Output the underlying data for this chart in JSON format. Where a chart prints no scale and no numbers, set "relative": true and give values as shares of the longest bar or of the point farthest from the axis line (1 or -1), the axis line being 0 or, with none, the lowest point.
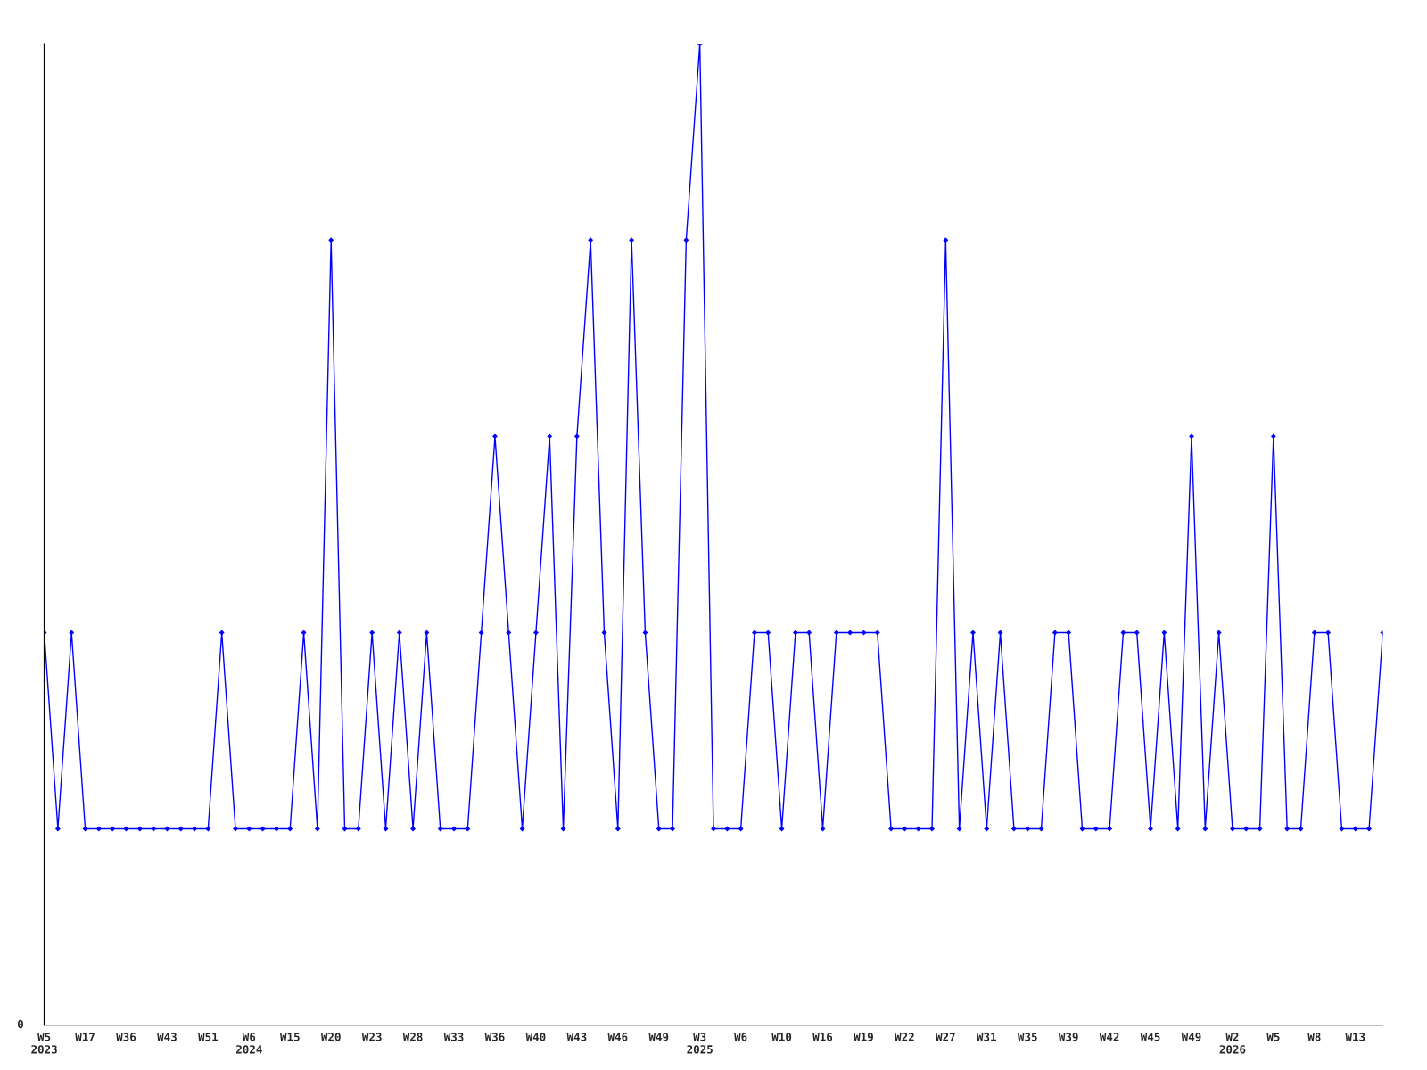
{
  "chart_data": {
    "type": "line",
    "relative": true,
    "categories": [
      "W5\n2023",
      null,
      null,
      "W17",
      null,
      null,
      "W36",
      null,
      null,
      "W43",
      null,
      null,
      "W51",
      null,
      null,
      "W6\n2024",
      null,
      null,
      "W15",
      null,
      null,
      "W20",
      null,
      null,
      "W23",
      null,
      null,
      "W28",
      null,
      null,
      "W33",
      null,
      null,
      "W36",
      null,
      null,
      "W40",
      null,
      null,
      "W43",
      null,
      null,
      "W46",
      null,
      null,
      "W49",
      null,
      null,
      "W3\n2025",
      null,
      null,
      "W6",
      null,
      null,
      "W10",
      null,
      null,
      "W16",
      null,
      null,
      "W19",
      null,
      null,
      "W22",
      null,
      null,
      "W27",
      null,
      null,
      "W31",
      null,
      null,
      "W35",
      null,
      null,
      "W39",
      null,
      null,
      "W42",
      null,
      null,
      "W45",
      null,
      null,
      "W49",
      null,
      null,
      "W2\n2026",
      null,
      null,
      "W5",
      null,
      null,
      "W8",
      null,
      null,
      "W13",
      null,
      null
    ],
    "series": [
      {
        "color": "#0000ff",
        "values": [
          0.4,
          0.2,
          0.4,
          0.2,
          0.2,
          0.2,
          0.2,
          0.2,
          0.2,
          0.2,
          0.2,
          0.2,
          0.2,
          0.4,
          0.2,
          0.2,
          0.2,
          0.2,
          0.2,
          0.4,
          0.2,
          0.8,
          0.2,
          0.2,
          0.4,
          0.2,
          0.4,
          0.2,
          0.4,
          0.2,
          0.2,
          0.2,
          0.4,
          0.6,
          0.4,
          0.2,
          0.4,
          0.6,
          0.2,
          0.6,
          0.8,
          0.4,
          0.2,
          0.8,
          0.4,
          0.2,
          0.2,
          0.8,
          1,
          0.2,
          0.2,
          0.2,
          0.4,
          0.4,
          0.2,
          0.4,
          0.4,
          0.2,
          0.4,
          0.4,
          0.4,
          0.4,
          0.2,
          0.2,
          0.2,
          0.2,
          0.8,
          0.2,
          0.4,
          0.2,
          0.4,
          0.2,
          0.2,
          0.2,
          0.4,
          0.4,
          0.2,
          0.2,
          0.2,
          0.4,
          0.4,
          0.2,
          0.4,
          0.2,
          0.6,
          0.2,
          0.4,
          0.2,
          0.2,
          0.2,
          0.6,
          0.2,
          0.2,
          0.4,
          0.4,
          0.2,
          0.2,
          0.2,
          0.4
        ]
      }
    ],
    "marker": "diamond",
    "line_style": "solid",
    "grid": false,
    "legend": false,
    "annotations": [
      "0"
    ]
  }
}
